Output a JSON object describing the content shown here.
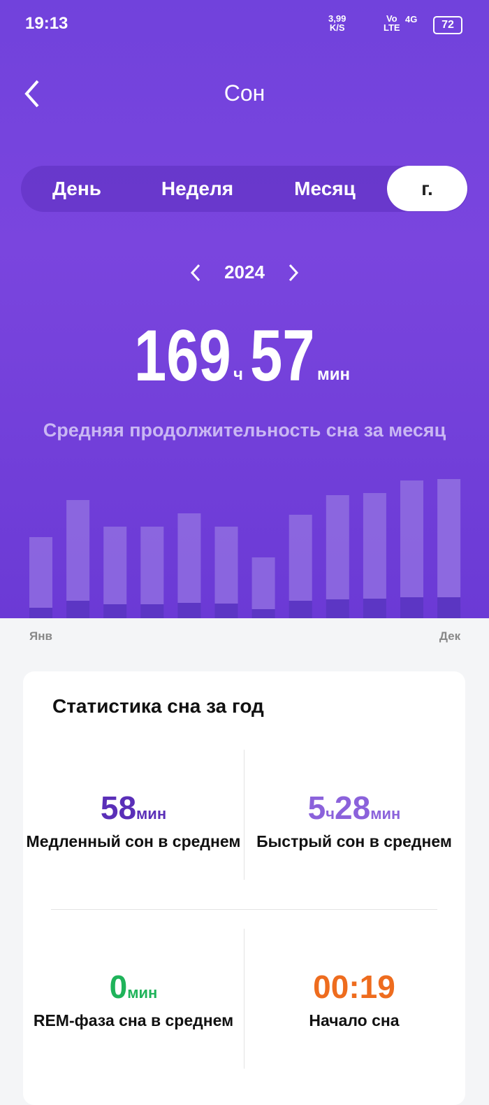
{
  "status_bar": {
    "time": "19:13",
    "speed": "3,99",
    "speed_unit": "K/S",
    "volte_top": "Vo",
    "volte_bottom": "LTE",
    "network": "4G",
    "battery": "72"
  },
  "header": {
    "title": "Сон"
  },
  "tabs": [
    {
      "label": "День"
    },
    {
      "label": "Неделя"
    },
    {
      "label": "Месяц"
    },
    {
      "label": "г.",
      "selected": true
    }
  ],
  "period": {
    "year": "2024"
  },
  "summary": {
    "hours": "169",
    "hours_unit": "ч",
    "minutes": "57",
    "minutes_unit": "мин",
    "caption": "Средняя продолжительность сна за месяц"
  },
  "chart_data": {
    "type": "stacked-bar",
    "categories": [
      "Янв",
      null,
      null,
      null,
      null,
      null,
      null,
      null,
      null,
      null,
      null,
      "Дек"
    ],
    "series": [
      {
        "color": "#5b36c2",
        "values": [
          15,
          25,
          20,
          20,
          22,
          21,
          13,
          25,
          27,
          28,
          30,
          30
        ]
      },
      {
        "color": "#8d69e0",
        "values": [
          101,
          144,
          111,
          111,
          128,
          110,
          74,
          123,
          149,
          151,
          167,
          169
        ]
      }
    ],
    "ylim": [
      0,
      200
    ]
  },
  "stats": {
    "title": "Статистика сна за год",
    "items": [
      {
        "parts": [
          "58",
          "мин"
        ],
        "label": "Медленный сон в среднем",
        "color": "#5a2fb8"
      },
      {
        "parts": [
          "5",
          "ч",
          "28",
          "мин"
        ],
        "label": "Быстрый сон в среднем",
        "color": "#8b62db"
      },
      {
        "parts": [
          "0",
          "мин"
        ],
        "label": "REM-фаза сна в среднем",
        "color": "#1fb35a"
      },
      {
        "parts": [
          "00:19"
        ],
        "label": "Начало сна",
        "color": "#ee6c1e"
      }
    ]
  }
}
